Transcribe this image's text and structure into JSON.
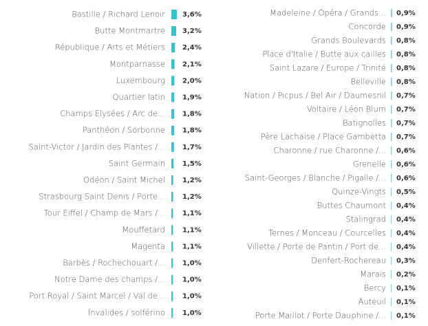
{
  "chart_data": [
    {
      "type": "bar",
      "orientation": "horizontal",
      "color": "#2ec6cf",
      "categories": [
        "Bastille / Richard Lenoir",
        "Butte Montmartre",
        "République / Arts et Métiers",
        "Montparnasse",
        "Luxembourg",
        "Quartier latin",
        "Champs Elysées / Arc de...",
        "Panthéon / Sorbonne",
        "Saint-Victor / Jardin des Plantes /...",
        "Saint Germain",
        "Odéon / Saint Michel",
        "Strasbourg Saint Denis / Porte...",
        "Tour Eiffel / Champ de Mars /...",
        "Mouffetard",
        "Magenta",
        "Barbès / Rochechouart /...",
        "Notre Dame des champs /...",
        "Port Royal / Saint Marcel / Val de...",
        "Invalides / solférino"
      ],
      "values": [
        3.6,
        3.2,
        2.4,
        2.1,
        2.0,
        1.9,
        1.8,
        1.8,
        1.7,
        1.5,
        1.2,
        1.2,
        1.1,
        1.1,
        1.1,
        1.0,
        1.0,
        1.0,
        1.0
      ],
      "value_labels": [
        "3,6%",
        "3,2%",
        "2,4%",
        "2,1%",
        "2,0%",
        "1,9%",
        "1,8%",
        "1,8%",
        "1,7%",
        "1,5%",
        "1,2%",
        "1,2%",
        "1,1%",
        "1,1%",
        "1,1%",
        "1,0%",
        "1,0%",
        "1,0%",
        "1,0%"
      ]
    },
    {
      "type": "bar",
      "orientation": "horizontal",
      "color": "#8fcfd4",
      "categories": [
        "Madeleine / Opéra / Grands...",
        "Concorde",
        "Grands Boulevards",
        "Place d'Italie / Butte aux cailles",
        "Saint Lazare / Europe / Trinité",
        "Belleville",
        "Nation / Picpus / Bel Air / Daumesnil",
        "Voltaire / Léon Blum",
        "Batignolles",
        "Père Lachaise / Place Gambetta",
        "Charonne / rue Charonne /...",
        "Grenelle",
        "Saint-Georges / Blanche / Pigalle /...",
        "Quinze-Vingts",
        "Buttes Chaumont",
        "Stalingrad",
        "Ternes / Monceau / Courcelles",
        "Villette / Porte de Pantin / Port de...",
        "Denfert-Rochereau",
        "Marais",
        "Bercy",
        "Auteuil",
        "Porte Maillot / Porte Dauphine /..."
      ],
      "values": [
        0.9,
        0.9,
        0.8,
        0.8,
        0.8,
        0.8,
        0.7,
        0.7,
        0.7,
        0.7,
        0.6,
        0.6,
        0.6,
        0.5,
        0.4,
        0.4,
        0.4,
        0.4,
        0.3,
        0.2,
        0.1,
        0.1,
        0.1
      ],
      "value_labels": [
        "0,9%",
        "0,9%",
        "0,8%",
        "0,8%",
        "0,8%",
        "0,8%",
        "0,7%",
        "0,7%",
        "0,7%",
        "0,7%",
        "0,6%",
        "0,6%",
        "0,6%",
        "0,5%",
        "0,4%",
        "0,4%",
        "0,4%",
        "0,4%",
        "0,3%",
        "0,2%",
        "0,1%",
        "0,1%",
        "0,1%"
      ]
    }
  ]
}
